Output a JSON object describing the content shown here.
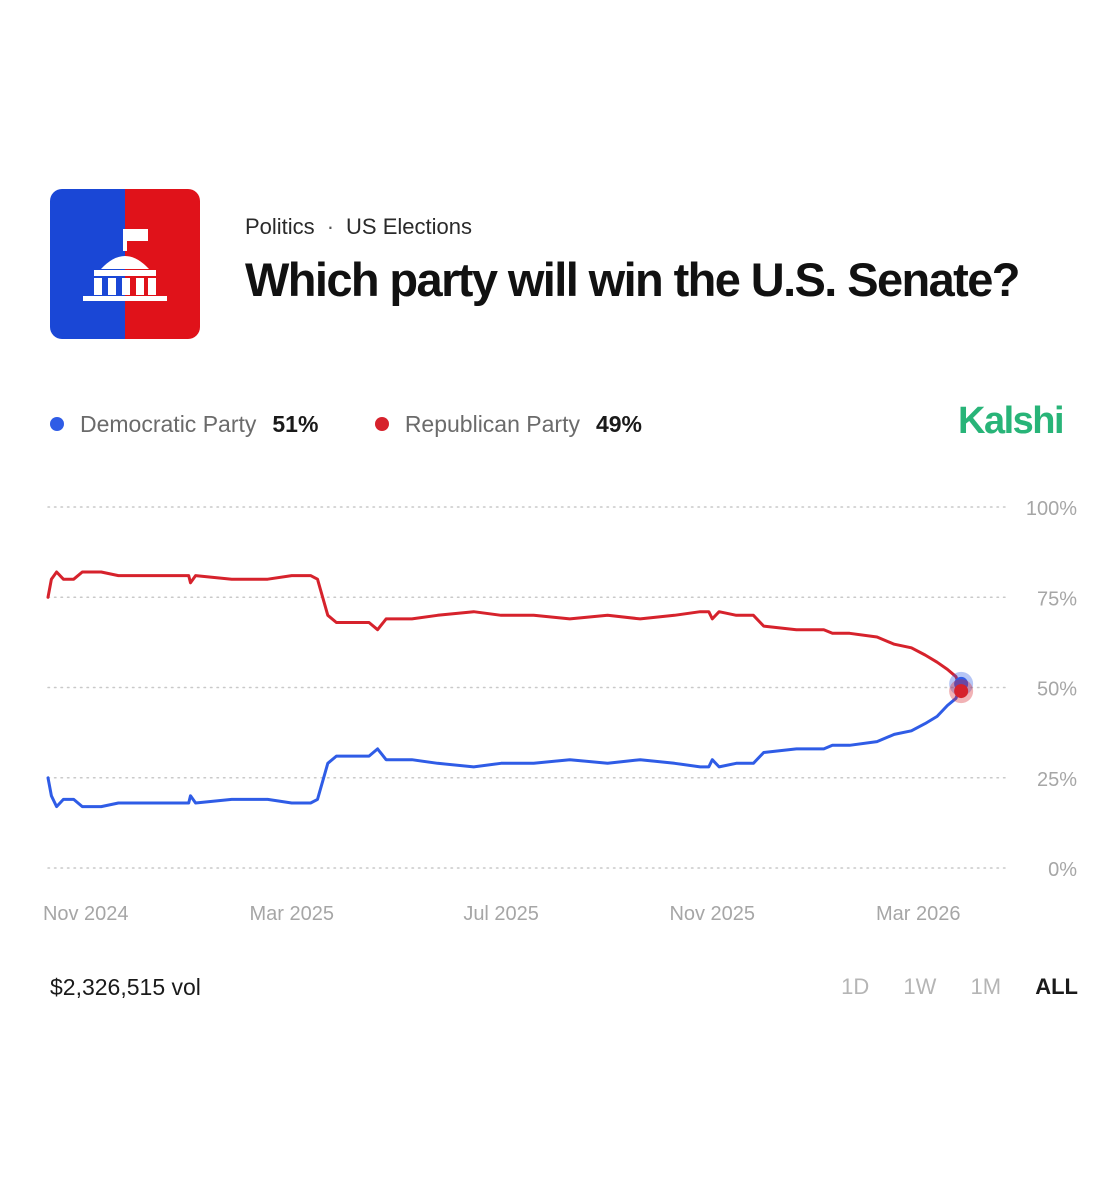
{
  "header": {
    "breadcrumb": [
      "Politics",
      "US Elections"
    ],
    "breadcrumb_separator": "·",
    "title": "Which party will win the U.S. Senate?"
  },
  "logo": {
    "icon": "capitol-building-icon",
    "left_color": "#1a47d6",
    "right_color": "#e0121a"
  },
  "brand": {
    "name": "Kalshi",
    "color": "#28b478"
  },
  "legend": [
    {
      "name": "Democratic Party",
      "value": "51%",
      "color": "#2f5ce6"
    },
    {
      "name": "Republican Party",
      "value": "49%",
      "color": "#d6222c"
    }
  ],
  "footer": {
    "volume": "$2,326,515 vol",
    "ranges": [
      "1D",
      "1W",
      "1M",
      "ALL"
    ],
    "active_range": "ALL"
  },
  "chart_data": {
    "type": "line",
    "title": "",
    "xlabel": "",
    "ylabel": "",
    "ylim": [
      0,
      100
    ],
    "y_ticks": [
      "0%",
      "25%",
      "50%",
      "75%",
      "100%"
    ],
    "y_axis_position": "right",
    "grid": "dotted horizontal",
    "x_tick_labels": [
      "Nov 2024",
      "Mar 2025",
      "Jul 2025",
      "Nov 2025",
      "Mar 2026"
    ],
    "x_ticks": [
      "2024-11-01",
      "2025-03-01",
      "2025-07-01",
      "2025-11-01",
      "2026-03-01"
    ],
    "x_range": [
      "2024-10-10",
      "2026-03-30"
    ],
    "series": [
      {
        "name": "Democratic Party",
        "color": "#2f5ce6",
        "points": [
          [
            "2024-10-10",
            25
          ],
          [
            "2024-10-12",
            20
          ],
          [
            "2024-10-15",
            17
          ],
          [
            "2024-10-19",
            19
          ],
          [
            "2024-10-25",
            19
          ],
          [
            "2024-10-30",
            17
          ],
          [
            "2024-11-10",
            17
          ],
          [
            "2024-11-20",
            18
          ],
          [
            "2024-12-05",
            18
          ],
          [
            "2024-12-20",
            18
          ],
          [
            "2024-12-31",
            18
          ],
          [
            "2025-01-01",
            20
          ],
          [
            "2025-01-04",
            18
          ],
          [
            "2025-01-25",
            19
          ],
          [
            "2025-02-15",
            19
          ],
          [
            "2025-03-01",
            18
          ],
          [
            "2025-03-12",
            18
          ],
          [
            "2025-03-16",
            19
          ],
          [
            "2025-03-22",
            29
          ],
          [
            "2025-03-27",
            31
          ],
          [
            "2025-04-05",
            31
          ],
          [
            "2025-04-15",
            31
          ],
          [
            "2025-04-20",
            33
          ],
          [
            "2025-04-25",
            30
          ],
          [
            "2025-05-10",
            30
          ],
          [
            "2025-05-25",
            29
          ],
          [
            "2025-06-15",
            28
          ],
          [
            "2025-07-01",
            29
          ],
          [
            "2025-07-20",
            29
          ],
          [
            "2025-08-10",
            30
          ],
          [
            "2025-09-01",
            29
          ],
          [
            "2025-09-20",
            30
          ],
          [
            "2025-10-10",
            29
          ],
          [
            "2025-10-25",
            28
          ],
          [
            "2025-10-30",
            28
          ],
          [
            "2025-11-01",
            30
          ],
          [
            "2025-11-05",
            28
          ],
          [
            "2025-11-15",
            29
          ],
          [
            "2025-11-25",
            29
          ],
          [
            "2025-12-01",
            32
          ],
          [
            "2025-12-20",
            33
          ],
          [
            "2026-01-05",
            33
          ],
          [
            "2026-01-10",
            34
          ],
          [
            "2026-01-20",
            34
          ],
          [
            "2026-02-05",
            35
          ],
          [
            "2026-02-15",
            37
          ],
          [
            "2026-02-25",
            38
          ],
          [
            "2026-03-05",
            40
          ],
          [
            "2026-03-12",
            42
          ],
          [
            "2026-03-18",
            45
          ],
          [
            "2026-03-23",
            47
          ],
          [
            "2026-03-26",
            51
          ]
        ]
      },
      {
        "name": "Republican Party",
        "color": "#d6222c",
        "points": [
          [
            "2024-10-10",
            75
          ],
          [
            "2024-10-12",
            80
          ],
          [
            "2024-10-15",
            82
          ],
          [
            "2024-10-19",
            80
          ],
          [
            "2024-10-25",
            80
          ],
          [
            "2024-10-30",
            82
          ],
          [
            "2024-11-10",
            82
          ],
          [
            "2024-11-20",
            81
          ],
          [
            "2024-12-05",
            81
          ],
          [
            "2024-12-20",
            81
          ],
          [
            "2024-12-31",
            81
          ],
          [
            "2025-01-01",
            79
          ],
          [
            "2025-01-04",
            81
          ],
          [
            "2025-01-25",
            80
          ],
          [
            "2025-02-15",
            80
          ],
          [
            "2025-03-01",
            81
          ],
          [
            "2025-03-12",
            81
          ],
          [
            "2025-03-16",
            80
          ],
          [
            "2025-03-22",
            70
          ],
          [
            "2025-03-27",
            68
          ],
          [
            "2025-04-05",
            68
          ],
          [
            "2025-04-15",
            68
          ],
          [
            "2025-04-20",
            66
          ],
          [
            "2025-04-25",
            69
          ],
          [
            "2025-05-10",
            69
          ],
          [
            "2025-05-25",
            70
          ],
          [
            "2025-06-15",
            71
          ],
          [
            "2025-07-01",
            70
          ],
          [
            "2025-07-20",
            70
          ],
          [
            "2025-08-10",
            69
          ],
          [
            "2025-09-01",
            70
          ],
          [
            "2025-09-20",
            69
          ],
          [
            "2025-10-10",
            70
          ],
          [
            "2025-10-25",
            71
          ],
          [
            "2025-10-30",
            71
          ],
          [
            "2025-11-01",
            69
          ],
          [
            "2025-11-05",
            71
          ],
          [
            "2025-11-15",
            70
          ],
          [
            "2025-11-25",
            70
          ],
          [
            "2025-12-01",
            67
          ],
          [
            "2025-12-20",
            66
          ],
          [
            "2026-01-05",
            66
          ],
          [
            "2026-01-10",
            65
          ],
          [
            "2026-01-20",
            65
          ],
          [
            "2026-02-05",
            64
          ],
          [
            "2026-02-15",
            62
          ],
          [
            "2026-02-25",
            61
          ],
          [
            "2026-03-05",
            59
          ],
          [
            "2026-03-12",
            57
          ],
          [
            "2026-03-18",
            55
          ],
          [
            "2026-03-23",
            53
          ],
          [
            "2026-03-26",
            49
          ]
        ]
      }
    ]
  }
}
